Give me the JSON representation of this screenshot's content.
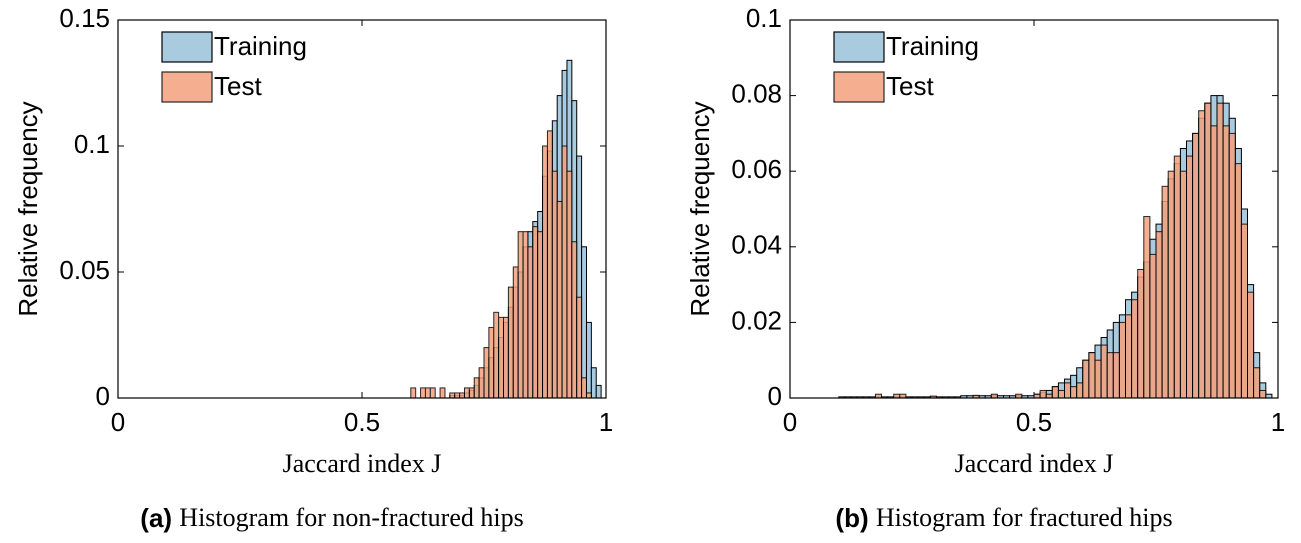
{
  "chart_data": [
    {
      "type": "histogram",
      "caption_label": "(a)",
      "caption": "Histogram for non-fractured hips",
      "xlabel": "Jaccard index J",
      "ylabel": "Relative frequency",
      "xlim": [
        0,
        1
      ],
      "ylim": [
        0,
        0.15
      ],
      "xticks": [
        0,
        0.5,
        1
      ],
      "yticks": [
        0,
        0.05,
        0.1,
        0.15
      ],
      "legend": "upper left",
      "bins": [
        0.6,
        0.61,
        0.62,
        0.63,
        0.64,
        0.65,
        0.66,
        0.67,
        0.68,
        0.69,
        0.7,
        0.71,
        0.72,
        0.73,
        0.74,
        0.75,
        0.76,
        0.77,
        0.78,
        0.79,
        0.8,
        0.81,
        0.82,
        0.83,
        0.84,
        0.85,
        0.86,
        0.87,
        0.88,
        0.89,
        0.9,
        0.91,
        0.92,
        0.93,
        0.94,
        0.95,
        0.96,
        0.97,
        0.98,
        0.99
      ],
      "series": [
        {
          "name": "Training",
          "color": "#a9cbe0",
          "values": [
            0,
            0,
            0,
            0,
            0,
            0,
            0,
            0,
            0.001,
            0.001,
            0.001,
            0.002,
            0.003,
            0.005,
            0.008,
            0.012,
            0.016,
            0.02,
            0.024,
            0.03,
            0.036,
            0.044,
            0.05,
            0.06,
            0.066,
            0.07,
            0.074,
            0.088,
            0.098,
            0.11,
            0.12,
            0.13,
            0.134,
            0.118,
            0.096,
            0.06,
            0.03,
            0.012,
            0.005
          ]
        },
        {
          "name": "Test",
          "color": "#f4a07c",
          "values": [
            0.004,
            0,
            0.004,
            0.004,
            0.004,
            0,
            0.004,
            0,
            0.002,
            0.002,
            0.002,
            0.004,
            0.004,
            0.008,
            0.012,
            0.02,
            0.028,
            0.034,
            0.032,
            0.032,
            0.044,
            0.052,
            0.066,
            0.066,
            0.06,
            0.068,
            0.066,
            0.1,
            0.106,
            0.09,
            0.078,
            0.1,
            0.09,
            0.062,
            0.04,
            0.008,
            0.002,
            0,
            0
          ]
        }
      ]
    },
    {
      "type": "histogram",
      "caption_label": "(b)",
      "caption": "Histogram for fractured hips",
      "xlabel": "Jaccard index J",
      "ylabel": "Relative frequency",
      "xlim": [
        0,
        1
      ],
      "ylim": [
        0,
        0.1
      ],
      "xticks": [
        0,
        0.5,
        1
      ],
      "yticks": [
        0,
        0.02,
        0.04,
        0.06,
        0.08,
        0.1
      ],
      "legend": "upper left",
      "bins": [
        0.1,
        0.1125,
        0.125,
        0.1375,
        0.15,
        0.1625,
        0.175,
        0.1875,
        0.2,
        0.2125,
        0.225,
        0.2375,
        0.25,
        0.2625,
        0.275,
        0.2875,
        0.3,
        0.3125,
        0.325,
        0.3375,
        0.35,
        0.3625,
        0.375,
        0.3875,
        0.4,
        0.4125,
        0.425,
        0.4375,
        0.45,
        0.4625,
        0.475,
        0.4875,
        0.5,
        0.5125,
        0.525,
        0.5375,
        0.55,
        0.5625,
        0.575,
        0.5875,
        0.6,
        0.6125,
        0.625,
        0.6375,
        0.65,
        0.6625,
        0.675,
        0.6875,
        0.7,
        0.7125,
        0.725,
        0.7375,
        0.75,
        0.7625,
        0.775,
        0.7875,
        0.8,
        0.8125,
        0.825,
        0.8375,
        0.85,
        0.8625,
        0.875,
        0.8875,
        0.9,
        0.9125,
        0.925,
        0.9375,
        0.95,
        0.9625,
        0.975,
        0.9875,
        1.0
      ],
      "series": [
        {
          "name": "Training",
          "color": "#a9cbe0",
          "values": [
            0.0003,
            0.0003,
            0.0003,
            0.0003,
            0.0003,
            0.0003,
            0.0003,
            0.0003,
            0.0003,
            0.0003,
            0.0003,
            0.0003,
            0.0003,
            0.0003,
            0.0003,
            0.0003,
            0.0003,
            0.0003,
            0.0003,
            0.0003,
            0.0006,
            0.0006,
            0.0006,
            0.0006,
            0.0006,
            0.0006,
            0.0006,
            0.0006,
            0.0006,
            0.0006,
            0.0006,
            0.0006,
            0.001,
            0.0015,
            0.002,
            0.003,
            0.004,
            0.005,
            0.006,
            0.008,
            0.01,
            0.012,
            0.014,
            0.016,
            0.018,
            0.02,
            0.022,
            0.026,
            0.028,
            0.032,
            0.036,
            0.042,
            0.046,
            0.052,
            0.058,
            0.062,
            0.066,
            0.068,
            0.07,
            0.074,
            0.078,
            0.08,
            0.08,
            0.078,
            0.074,
            0.066,
            0.05,
            0.03,
            0.012,
            0.004,
            0.001,
            0
          ]
        },
        {
          "name": "Test",
          "color": "#f4a07c",
          "values": [
            0,
            0,
            0,
            0,
            0,
            0,
            0.001,
            0,
            0,
            0.001,
            0.001,
            0,
            0,
            0,
            0,
            0.0005,
            0,
            0,
            0,
            0,
            0,
            0,
            0.0007,
            0,
            0,
            0.001,
            0,
            0,
            0,
            0.001,
            0,
            0,
            0.001,
            0.002,
            0.001,
            0.003,
            0.002,
            0.004,
            0.003,
            0.004,
            0.01,
            0.012,
            0.01,
            0.014,
            0.012,
            0.012,
            0.02,
            0.022,
            0.026,
            0.034,
            0.048,
            0.038,
            0.044,
            0.056,
            0.06,
            0.064,
            0.06,
            0.064,
            0.07,
            0.076,
            0.078,
            0.072,
            0.078,
            0.072,
            0.07,
            0.062,
            0.046,
            0.028,
            0.008,
            0.002,
            0,
            0
          ]
        }
      ]
    }
  ]
}
